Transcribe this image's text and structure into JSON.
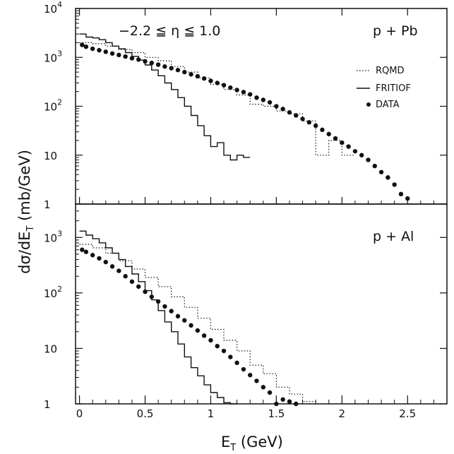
{
  "chart_data": [
    {
      "type": "line",
      "panel": "top",
      "label": "p + Pb",
      "annotation": "−2.2 ≦ η ≦ 1.0",
      "ylim": [
        1,
        10000
      ],
      "yscale": "log",
      "legend": {
        "placement": "top-right",
        "items": [
          "RQMD",
          "FRITIOF",
          "DATA"
        ]
      },
      "series": [
        {
          "name": "DATA",
          "style": "points",
          "x": [
            0.02,
            0.05,
            0.1,
            0.15,
            0.2,
            0.25,
            0.3,
            0.35,
            0.4,
            0.45,
            0.5,
            0.55,
            0.6,
            0.65,
            0.7,
            0.75,
            0.8,
            0.85,
            0.9,
            0.95,
            1.0,
            1.05,
            1.1,
            1.15,
            1.2,
            1.25,
            1.3,
            1.35,
            1.4,
            1.45,
            1.5,
            1.55,
            1.6,
            1.65,
            1.7,
            1.75,
            1.8,
            1.85,
            1.9,
            1.95,
            2.0,
            2.05,
            2.1,
            2.15,
            2.2,
            2.25,
            2.3,
            2.35,
            2.4,
            2.45,
            2.5
          ],
          "y": [
            1800,
            1650,
            1500,
            1400,
            1300,
            1200,
            1120,
            1040,
            960,
            900,
            830,
            770,
            710,
            650,
            600,
            550,
            500,
            450,
            410,
            370,
            330,
            300,
            270,
            240,
            215,
            195,
            175,
            150,
            135,
            120,
            100,
            88,
            75,
            65,
            55,
            47,
            40,
            33,
            27,
            22,
            18,
            15,
            12,
            10,
            8,
            6,
            4.5,
            3.5,
            2.5,
            1.6,
            1.3
          ]
        },
        {
          "name": "FRITIOF",
          "style": "step",
          "x": [
            0.0,
            0.05,
            0.1,
            0.15,
            0.2,
            0.25,
            0.3,
            0.35,
            0.4,
            0.45,
            0.5,
            0.55,
            0.6,
            0.65,
            0.7,
            0.75,
            0.8,
            0.85,
            0.9,
            0.95,
            1.0,
            1.05,
            1.1,
            1.15,
            1.2,
            1.25
          ],
          "y": [
            3000,
            2600,
            2500,
            2300,
            2000,
            1700,
            1500,
            1250,
            1050,
            880,
            700,
            550,
            420,
            300,
            220,
            150,
            100,
            65,
            40,
            25,
            15,
            18,
            10,
            8,
            10,
            9
          ]
        },
        {
          "name": "RQMD",
          "style": "step-dotted",
          "x": [
            0.0,
            0.1,
            0.2,
            0.3,
            0.4,
            0.5,
            0.6,
            0.7,
            0.8,
            0.9,
            1.0,
            1.1,
            1.2,
            1.3,
            1.4,
            1.5,
            1.6,
            1.7,
            1.8,
            1.9,
            2.0
          ],
          "y": [
            2000,
            1900,
            1700,
            1450,
            1250,
            1000,
            850,
            650,
            500,
            380,
            280,
            220,
            170,
            110,
            100,
            80,
            70,
            50,
            10,
            20,
            10
          ]
        }
      ]
    },
    {
      "type": "line",
      "panel": "bottom",
      "label": "p + Al",
      "ylim": [
        1,
        4000
      ],
      "yscale": "log",
      "series": [
        {
          "name": "DATA",
          "style": "points",
          "x": [
            0.02,
            0.05,
            0.1,
            0.15,
            0.2,
            0.25,
            0.3,
            0.35,
            0.4,
            0.45,
            0.5,
            0.55,
            0.6,
            0.65,
            0.7,
            0.75,
            0.8,
            0.85,
            0.9,
            0.95,
            1.0,
            1.05,
            1.1,
            1.15,
            1.2,
            1.25,
            1.3,
            1.35,
            1.4,
            1.45,
            1.5,
            1.55,
            1.6,
            1.65
          ],
          "y": [
            600,
            550,
            480,
            420,
            360,
            300,
            250,
            200,
            160,
            130,
            105,
            85,
            70,
            57,
            47,
            38,
            32,
            26,
            21,
            17,
            14,
            11,
            9,
            7,
            5.5,
            4.2,
            3.3,
            2.6,
            2.0,
            1.6,
            1.0,
            1.2,
            1.1,
            1.0
          ]
        },
        {
          "name": "FRITIOF",
          "style": "step",
          "x": [
            0.0,
            0.05,
            0.1,
            0.15,
            0.2,
            0.25,
            0.3,
            0.35,
            0.4,
            0.45,
            0.5,
            0.55,
            0.6,
            0.65,
            0.7,
            0.75,
            0.8,
            0.85,
            0.9,
            0.95,
            1.0,
            1.05,
            1.1,
            1.15
          ],
          "y": [
            1300,
            1100,
            950,
            800,
            650,
            520,
            400,
            300,
            220,
            160,
            110,
            75,
            48,
            30,
            20,
            12,
            7,
            4.5,
            3.2,
            2.2,
            1.6,
            1.3,
            1.05,
            0.9
          ]
        },
        {
          "name": "RQMD",
          "style": "step-dotted",
          "x": [
            0.0,
            0.1,
            0.2,
            0.3,
            0.4,
            0.5,
            0.6,
            0.7,
            0.8,
            0.9,
            1.0,
            1.1,
            1.2,
            1.3,
            1.4,
            1.5,
            1.6,
            1.7
          ],
          "y": [
            750,
            650,
            520,
            380,
            270,
            190,
            130,
            85,
            55,
            35,
            22,
            14,
            9,
            5,
            3.5,
            2,
            1.5,
            1.1
          ]
        }
      ]
    }
  ],
  "axes": {
    "xlabel": "E_T (GeV)",
    "ylabel": "dσ/dE_T (mb/GeV)",
    "xlim": [
      -0.03,
      2.8
    ],
    "xticks": [
      "0",
      "0.5",
      "1",
      "1.5",
      "2",
      "2.5"
    ],
    "top_yticks": [
      "10",
      "10",
      "10",
      "10",
      "1"
    ],
    "top_ysups": [
      "4",
      "3",
      "2",
      "",
      ""
    ],
    "top_ytick_values": [
      10000,
      1000,
      100,
      10,
      1
    ],
    "bottom_yticks": [
      "10",
      "10",
      "10",
      "1"
    ],
    "bottom_ysups": [
      "3",
      "2",
      "",
      ""
    ],
    "bottom_ytick_values": [
      1000,
      100,
      10,
      1
    ]
  },
  "text": {
    "annotation": "−2.2 ≦ η ≦ 1.0",
    "top_panel_label": "p + Pb",
    "bottom_panel_label": "p + Al",
    "legend_rqmd": "RQMD",
    "legend_fritiof": "FRITIOF",
    "legend_data": "DATA",
    "ylabel_main": "dσ/dE",
    "ylabel_sub": "T",
    "ylabel_tail": " (mb/GeV)",
    "xlabel_main": "E",
    "xlabel_sub": "T",
    "xlabel_tail": " (GeV)"
  },
  "colors": {
    "ink": "#111111",
    "background": "#ffffff"
  }
}
